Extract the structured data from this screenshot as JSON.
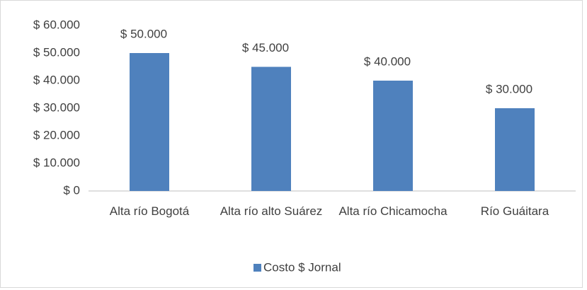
{
  "chart_data": {
    "type": "bar",
    "categories": [
      "Alta río Bogotá",
      "Alta río alto Suárez",
      "Alta río Chicamocha",
      "Río Guáitara"
    ],
    "series": [
      {
        "name": "Costo $ Jornal",
        "color": "#4f81bd",
        "values": [
          50000,
          45000,
          40000,
          30000
        ],
        "value_labels": [
          "$ 50.000",
          "$ 45.000",
          "$ 40.000",
          "$ 30.000"
        ]
      }
    ],
    "ylim": [
      0,
      60000
    ],
    "yticks": [
      {
        "value": 0,
        "label": "$ 0"
      },
      {
        "value": 10000,
        "label": "$ 10.000"
      },
      {
        "value": 20000,
        "label": "$ 20.000"
      },
      {
        "value": 30000,
        "label": "$ 30.000"
      },
      {
        "value": 40000,
        "label": "$ 40.000"
      },
      {
        "value": 50000,
        "label": "$ 50.000"
      },
      {
        "value": 60000,
        "label": "$ 60.000"
      }
    ],
    "grid": false,
    "legend": "bottom"
  }
}
